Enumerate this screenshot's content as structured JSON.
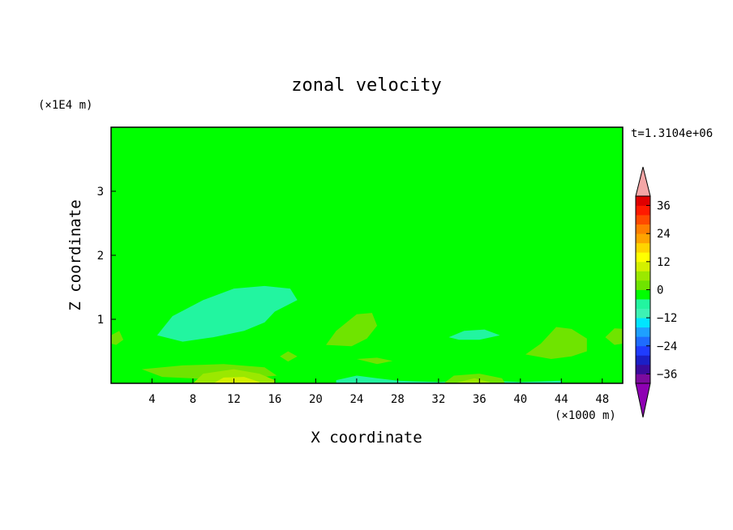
{
  "chart_data": {
    "type": "heatmap",
    "title": "zonal velocity",
    "xlabel": "X coordinate",
    "ylabel": "Z coordinate",
    "x_unit": "(×1000 m)",
    "y_unit": "(×1E4 m)",
    "time_label": "t=1.3104e+06",
    "xlim": [
      0,
      50
    ],
    "ylim": [
      0,
      4
    ],
    "xticks": [
      4,
      8,
      12,
      16,
      20,
      24,
      28,
      32,
      36,
      40,
      44,
      48
    ],
    "yticks": [
      1,
      2,
      3
    ],
    "colorbar": {
      "levels": [
        -40,
        -36,
        -32,
        -28,
        -24,
        -20,
        -16,
        -12,
        -8,
        -4,
        0,
        4,
        8,
        12,
        16,
        20,
        24,
        28,
        32,
        36,
        40
      ],
      "tick_values": [
        36,
        24,
        12,
        0,
        -12,
        -24,
        -36
      ],
      "tick_labels": [
        "36",
        "24",
        "12",
        "0",
        "−12",
        "−24",
        "−36"
      ],
      "colors": [
        "#7c0b9e",
        "#3a0b9c",
        "#1b1fc6",
        "#1f3cff",
        "#1e6cff",
        "#1ea0ff",
        "#00e5ff",
        "#3df2b4",
        "#22f5a0",
        "#00ff00",
        "#6fe400",
        "#9be800",
        "#d4f000",
        "#ffff00",
        "#ffd400",
        "#ffa300",
        "#ff7f00",
        "#ff4a00",
        "#ff1a00",
        "#e00000"
      ],
      "low_arrow_color": "#8e00b3",
      "high_arrow_color": "#f4a6a6"
    },
    "background_color": "#00ff00",
    "regions": [
      {
        "value": -2,
        "poly": [
          [
            0,
            3.5
          ],
          [
            3,
            3.35
          ],
          [
            8,
            3.33
          ],
          [
            14,
            3.25
          ],
          [
            20,
            3.28
          ],
          [
            26,
            3.2
          ],
          [
            36,
            3.2
          ],
          [
            44,
            3.15
          ],
          [
            50,
            3.02
          ],
          [
            50,
            2.75
          ],
          [
            42,
            2.72
          ],
          [
            30,
            2.68
          ],
          [
            18,
            2.72
          ],
          [
            6,
            2.68
          ],
          [
            0,
            2.65
          ]
        ]
      },
      {
        "value": -2,
        "poly": [
          [
            22,
            4
          ],
          [
            24,
            3.7
          ],
          [
            27,
            3.55
          ],
          [
            32,
            3.48
          ],
          [
            38,
            3.45
          ],
          [
            44,
            3.55
          ],
          [
            47,
            3.8
          ],
          [
            48,
            4
          ]
        ]
      },
      {
        "value": -2,
        "poly": [
          [
            0,
            1.75
          ],
          [
            3,
            1.8
          ],
          [
            7,
            1.8
          ],
          [
            11,
            1.98
          ],
          [
            15,
            2.08
          ],
          [
            19,
            2.12
          ],
          [
            23,
            2.1
          ],
          [
            22.5,
            1.75
          ],
          [
            22,
            1.35
          ],
          [
            21,
            0.82
          ],
          [
            19.5,
            0.55
          ],
          [
            17.5,
            0.6
          ],
          [
            15.5,
            0.45
          ],
          [
            12,
            0.35
          ],
          [
            8,
            0.45
          ],
          [
            5,
            0.55
          ],
          [
            2,
            0.45
          ],
          [
            0,
            0.38
          ]
        ]
      },
      {
        "value": -2,
        "poly": [
          [
            29,
            0.5
          ],
          [
            31,
            0.82
          ],
          [
            33,
            1.05
          ],
          [
            35,
            1.18
          ],
          [
            38,
            1.3
          ],
          [
            41,
            1.45
          ],
          [
            44,
            1.38
          ],
          [
            46,
            1.2
          ],
          [
            48.5,
            0.95
          ],
          [
            50,
            0.82
          ],
          [
            50,
            0.35
          ],
          [
            47,
            0.22
          ],
          [
            44,
            0.12
          ],
          [
            40,
            0.15
          ],
          [
            37,
            0.3
          ],
          [
            34,
            0.4
          ],
          [
            31,
            0.35
          ]
        ]
      },
      {
        "value": -2,
        "poly": [
          [
            33.5,
            2.35
          ],
          [
            37,
            2.45
          ],
          [
            42,
            2.55
          ],
          [
            45,
            2.5
          ],
          [
            46.8,
            2.42
          ],
          [
            46.5,
            2.2
          ],
          [
            44,
            2.12
          ],
          [
            40,
            2.1
          ],
          [
            36,
            2.15
          ],
          [
            34,
            2.2
          ]
        ]
      },
      {
        "value": -2,
        "poly": [
          [
            0,
            0
          ],
          [
            0,
            0.25
          ],
          [
            6,
            0.3
          ],
          [
            10,
            0.25
          ],
          [
            16,
            0.2
          ],
          [
            21,
            0.12
          ],
          [
            24,
            0.18
          ],
          [
            28,
            0.1
          ],
          [
            32,
            0.08
          ],
          [
            36,
            0.12
          ],
          [
            40,
            0.05
          ],
          [
            44,
            0.08
          ],
          [
            50,
            0.1
          ],
          [
            50,
            0
          ]
        ]
      },
      {
        "value": -2,
        "poly": [
          [
            42,
            1.58
          ],
          [
            44,
            1.66
          ],
          [
            46,
            1.58
          ],
          [
            44,
            1.5
          ]
        ]
      },
      {
        "value": -7,
        "poly": [
          [
            4.5,
            0.75
          ],
          [
            6,
            1.05
          ],
          [
            9,
            1.3
          ],
          [
            12,
            1.48
          ],
          [
            15,
            1.52
          ],
          [
            17.5,
            1.48
          ],
          [
            18.2,
            1.3
          ],
          [
            16,
            1.12
          ],
          [
            15,
            0.95
          ],
          [
            13,
            0.82
          ],
          [
            10,
            0.72
          ],
          [
            7,
            0.65
          ]
        ]
      },
      {
        "value": -7,
        "poly": [
          [
            33,
            0.72
          ],
          [
            34.5,
            0.82
          ],
          [
            36.5,
            0.84
          ],
          [
            38,
            0.75
          ],
          [
            36,
            0.68
          ],
          [
            34,
            0.68
          ]
        ]
      },
      {
        "value": -7,
        "poly": [
          [
            22,
            0.05
          ],
          [
            24,
            0.12
          ],
          [
            26,
            0.08
          ],
          [
            28,
            0.04
          ],
          [
            32,
            0.02
          ],
          [
            36,
            0.05
          ],
          [
            40,
            0.02
          ],
          [
            44,
            0.04
          ],
          [
            44,
            0
          ],
          [
            22,
            0
          ]
        ]
      },
      {
        "value": 2,
        "poly": [
          [
            21,
            0.6
          ],
          [
            22,
            0.82
          ],
          [
            24,
            1.08
          ],
          [
            25.5,
            1.1
          ],
          [
            26,
            0.9
          ],
          [
            25,
            0.7
          ],
          [
            23.5,
            0.58
          ]
        ]
      },
      {
        "value": 2,
        "poly": [
          [
            40.5,
            0.45
          ],
          [
            42,
            0.62
          ],
          [
            43.5,
            0.88
          ],
          [
            45,
            0.85
          ],
          [
            46.5,
            0.7
          ],
          [
            46.5,
            0.5
          ],
          [
            45,
            0.42
          ],
          [
            43,
            0.38
          ]
        ]
      },
      {
        "value": 2,
        "poly": [
          [
            48.3,
            0.72
          ],
          [
            49.2,
            0.86
          ],
          [
            50,
            0.85
          ],
          [
            50,
            0.62
          ],
          [
            49.2,
            0.6
          ]
        ]
      },
      {
        "value": 2,
        "poly": [
          [
            3,
            0.22
          ],
          [
            7,
            0.28
          ],
          [
            11,
            0.3
          ],
          [
            15,
            0.25
          ],
          [
            16.2,
            0.12
          ],
          [
            13.5,
            0.08
          ],
          [
            9,
            0.07
          ],
          [
            5,
            0.1
          ]
        ]
      },
      {
        "value": 2,
        "poly": [
          [
            32.5,
            0
          ],
          [
            33.5,
            0.12
          ],
          [
            36,
            0.15
          ],
          [
            38.2,
            0.08
          ],
          [
            38.5,
            0
          ]
        ]
      },
      {
        "value": 2,
        "poly": [
          [
            16.5,
            0.42
          ],
          [
            17.3,
            0.5
          ],
          [
            18.2,
            0.42
          ],
          [
            17.3,
            0.34
          ]
        ]
      },
      {
        "value": 2,
        "poly": [
          [
            24,
            0.38
          ],
          [
            26,
            0.4
          ],
          [
            27.5,
            0.35
          ],
          [
            26,
            0.3
          ]
        ]
      },
      {
        "value": 2,
        "poly": [
          [
            0,
            0.75
          ],
          [
            0.8,
            0.82
          ],
          [
            1.2,
            0.68
          ],
          [
            0.5,
            0.6
          ],
          [
            0,
            0.62
          ]
        ]
      },
      {
        "value": 6,
        "poly": [
          [
            8,
            0
          ],
          [
            9,
            0.15
          ],
          [
            12,
            0.22
          ],
          [
            14.5,
            0.15
          ],
          [
            16,
            0.05
          ],
          [
            16,
            0
          ]
        ]
      },
      {
        "value": 6,
        "poly": [
          [
            33.5,
            0
          ],
          [
            35.5,
            0.08
          ],
          [
            37,
            0.02
          ],
          [
            37,
            0
          ]
        ]
      },
      {
        "value": 10,
        "poly": [
          [
            10,
            0
          ],
          [
            11,
            0.09
          ],
          [
            13,
            0.1
          ],
          [
            14.5,
            0.02
          ],
          [
            14.5,
            0
          ]
        ]
      }
    ]
  }
}
